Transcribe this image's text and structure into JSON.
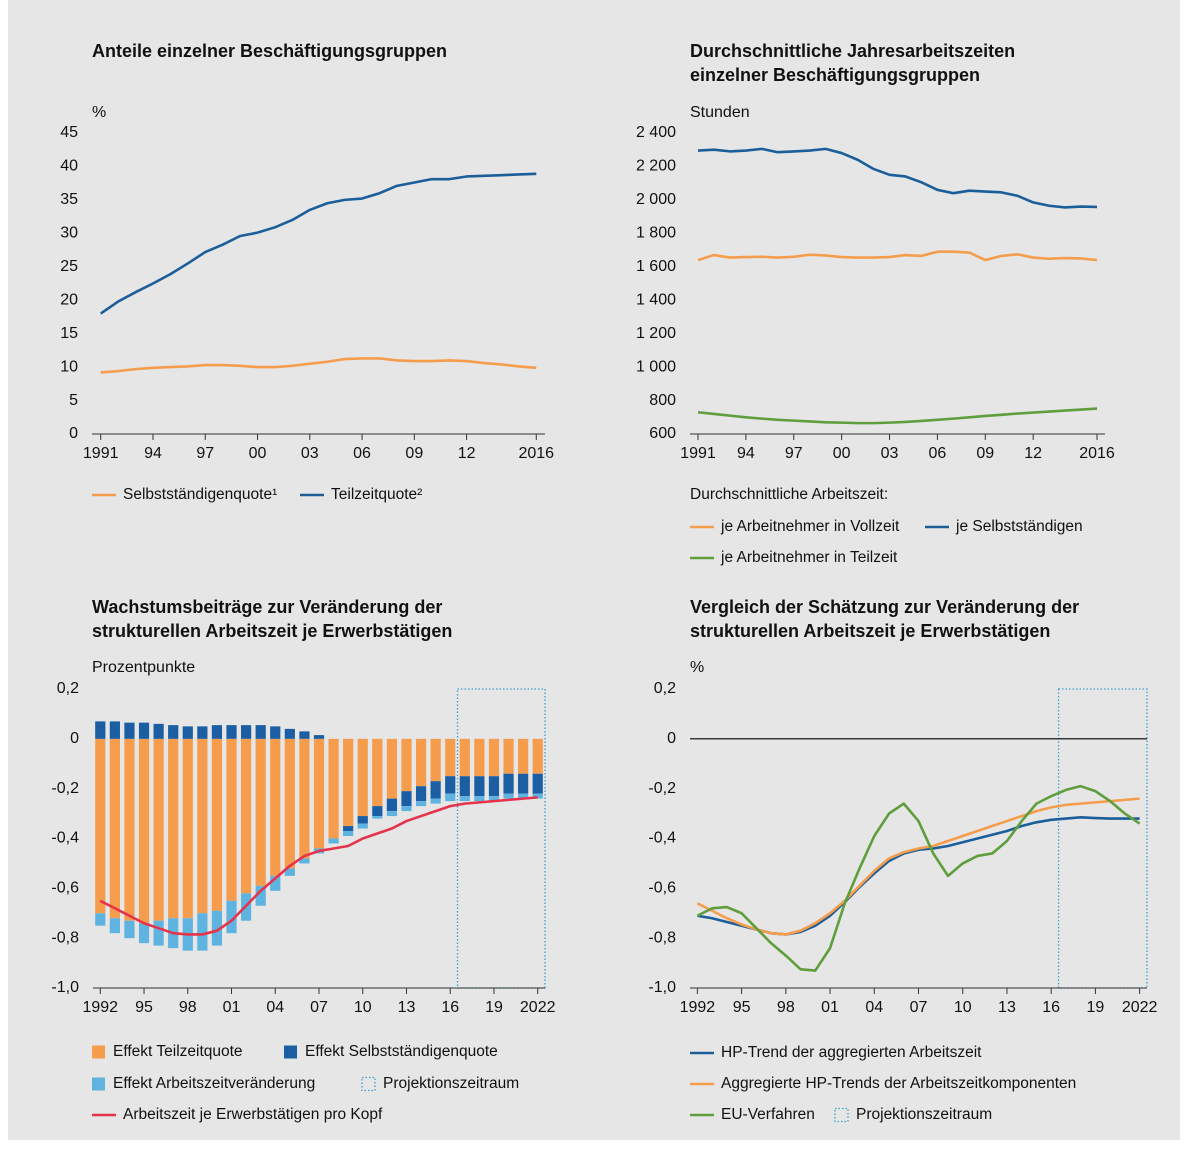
{
  "chart_data": [
    {
      "type": "line",
      "title": [
        "Anteile einzelner Beschäftigungsgruppen"
      ],
      "unit": "%",
      "x": [
        1991,
        1992,
        1993,
        1994,
        1995,
        1996,
        1997,
        1998,
        1999,
        2000,
        2001,
        2002,
        2003,
        2004,
        2005,
        2006,
        2007,
        2008,
        2009,
        2010,
        2011,
        2012,
        2013,
        2014,
        2015,
        2016
      ],
      "xlim": [
        1990.5,
        2016.5
      ],
      "xticks": [
        1991,
        {
          "value": 1994,
          "label": "94"
        },
        {
          "value": 1997,
          "label": "97"
        },
        {
          "value": 2000,
          "label": "00"
        },
        {
          "value": 2003,
          "label": "03"
        },
        {
          "value": 2006,
          "label": "06"
        },
        {
          "value": 2009,
          "label": "09"
        },
        {
          "value": 2012,
          "label": "12"
        },
        2016
      ],
      "ylim": [
        0,
        45
      ],
      "yticks": [
        0,
        5,
        10,
        15,
        20,
        25,
        30,
        35,
        40,
        45
      ],
      "series": [
        {
          "name": "Selbstständigenquote¹",
          "color": "#f59d4c",
          "values": [
            9.2,
            9.4,
            9.7,
            9.9,
            10,
            10.1,
            10.3,
            10.3,
            10.2,
            10,
            10,
            10.2,
            10.5,
            10.8,
            11.2,
            11.3,
            11.3,
            11,
            10.9,
            10.9,
            11,
            10.9,
            10.6,
            10.4,
            10.1,
            9.9
          ]
        },
        {
          "name": "Teilzeitquote²",
          "color": "#1b5e9a",
          "values": [
            18,
            19.8,
            21.2,
            22.5,
            23.9,
            25.5,
            27.2,
            28.3,
            29.6,
            30.1,
            30.9,
            32,
            33.5,
            34.5,
            35,
            35.2,
            36,
            37.1,
            37.6,
            38.1,
            38.1,
            38.5,
            38.6,
            38.7,
            38.8,
            38.9
          ]
        }
      ]
    },
    {
      "type": "line",
      "title": [
        "Durchschnittliche Jahresarbeitszeiten",
        "einzelner Beschäftigungsgruppen"
      ],
      "unit": "Stunden",
      "legend_title": "Durchschnittliche Arbeitszeit:",
      "x": [
        1991,
        1992,
        1993,
        1994,
        1995,
        1996,
        1997,
        1998,
        1999,
        2000,
        2001,
        2002,
        2003,
        2004,
        2005,
        2006,
        2007,
        2008,
        2009,
        2010,
        2011,
        2012,
        2013,
        2014,
        2015,
        2016
      ],
      "xlim": [
        1990.5,
        2016.5
      ],
      "xticks": [
        1991,
        {
          "value": 1994,
          "label": "94"
        },
        {
          "value": 1997,
          "label": "97"
        },
        {
          "value": 2000,
          "label": "00"
        },
        {
          "value": 2003,
          "label": "03"
        },
        {
          "value": 2006,
          "label": "06"
        },
        {
          "value": 2009,
          "label": "09"
        },
        {
          "value": 2012,
          "label": "12"
        },
        2016
      ],
      "ylim": [
        600,
        2400
      ],
      "yticks": [
        600,
        800,
        {
          "value": 1000,
          "label": "1 000"
        },
        {
          "value": 1200,
          "label": "1 200"
        },
        {
          "value": 1400,
          "label": "1 400"
        },
        {
          "value": 1600,
          "label": "1 600"
        },
        {
          "value": 1800,
          "label": "1 800"
        },
        {
          "value": 2000,
          "label": "2 000"
        },
        {
          "value": 2200,
          "label": "2 200"
        },
        {
          "value": 2400,
          "label": "2 400"
        }
      ],
      "series": [
        {
          "name": "je Arbeitnehmer in Vollzeit",
          "color": "#f59d4c",
          "values": [
            1640,
            1670,
            1655,
            1658,
            1660,
            1655,
            1660,
            1672,
            1668,
            1658,
            1655,
            1655,
            1658,
            1670,
            1665,
            1690,
            1690,
            1685,
            1640,
            1665,
            1675,
            1655,
            1648,
            1652,
            1650,
            1640
          ]
        },
        {
          "name": "je Selbstständigen",
          "color": "#1b5e9a",
          "values": [
            2295,
            2300,
            2290,
            2295,
            2305,
            2285,
            2290,
            2295,
            2305,
            2280,
            2240,
            2185,
            2150,
            2140,
            2105,
            2060,
            2040,
            2055,
            2050,
            2045,
            2025,
            1985,
            1965,
            1955,
            1960,
            1958
          ]
        },
        {
          "name": "je Arbeitnehmer in Teilzeit",
          "color": "#5f9e3c",
          "values": [
            730,
            720,
            710,
            700,
            692,
            685,
            680,
            675,
            670,
            668,
            665,
            665,
            668,
            672,
            678,
            685,
            692,
            700,
            708,
            715,
            722,
            728,
            734,
            740,
            746,
            752
          ]
        }
      ]
    },
    {
      "type": "bar",
      "title": [
        "Wachstumsbeiträge zur Veränderung der",
        "strukturellen Arbeitszeit je Erwerbstätigen"
      ],
      "unit": "Prozentpunkte",
      "x": [
        1992,
        1993,
        1994,
        1995,
        1996,
        1997,
        1998,
        1999,
        2000,
        2001,
        2002,
        2003,
        2004,
        2005,
        2006,
        2007,
        2008,
        2009,
        2010,
        2011,
        2012,
        2013,
        2014,
        2015,
        2016,
        2017,
        2018,
        2019,
        2020,
        2021,
        2022
      ],
      "xlim": [
        1991.5,
        2022.5
      ],
      "xticks": [
        1992,
        {
          "value": 1995,
          "label": "95"
        },
        {
          "value": 1998,
          "label": "98"
        },
        {
          "value": 2001,
          "label": "01"
        },
        {
          "value": 2004,
          "label": "04"
        },
        {
          "value": 2007,
          "label": "07"
        },
        {
          "value": 2010,
          "label": "10"
        },
        {
          "value": 2013,
          "label": "13"
        },
        {
          "value": 2016,
          "label": "16"
        },
        {
          "value": 2019,
          "label": "19"
        },
        2022
      ],
      "ylim": [
        -1.0,
        0.2
      ],
      "yticks": [
        {
          "value": 0.2,
          "label": "0,2"
        },
        0,
        {
          "value": -0.2,
          "label": "-0,2"
        },
        {
          "value": -0.4,
          "label": "-0,4"
        },
        {
          "value": -0.6,
          "label": "-0,6"
        },
        {
          "value": -0.8,
          "label": "-0,8"
        },
        {
          "value": -1.0,
          "label": "-1,0"
        }
      ],
      "projection_start": 2016.5,
      "projection_label": "Projektionszeitraum",
      "projection_color": "#3a9fd6",
      "series": [
        {
          "name": "Effekt Teilzeitquote",
          "color": "#f59d4c",
          "values": [
            -0.7,
            -0.72,
            -0.73,
            -0.74,
            -0.73,
            -0.72,
            -0.72,
            -0.7,
            -0.69,
            -0.65,
            -0.62,
            -0.59,
            -0.55,
            -0.52,
            -0.48,
            -0.44,
            -0.4,
            -0.35,
            -0.31,
            -0.27,
            -0.24,
            -0.21,
            -0.19,
            -0.17,
            -0.15,
            -0.15,
            -0.15,
            -0.15,
            -0.14,
            -0.14,
            -0.14
          ]
        },
        {
          "name": "Effekt Selbstständigenquote",
          "color": "#1c5ea3",
          "values": [
            0.07,
            0.07,
            0.065,
            0.065,
            0.06,
            0.055,
            0.05,
            0.05,
            0.055,
            0.055,
            0.055,
            0.055,
            0.05,
            0.04,
            0.03,
            0.015,
            0,
            -0.02,
            -0.03,
            -0.04,
            -0.05,
            -0.06,
            -0.06,
            -0.07,
            -0.07,
            -0.08,
            -0.08,
            -0.08,
            -0.08,
            -0.08,
            -0.08
          ]
        },
        {
          "name": "Effekt Arbeitszeitveränderung",
          "color": "#5fb3e0",
          "values": [
            -0.05,
            -0.06,
            -0.07,
            -0.08,
            -0.1,
            -0.12,
            -0.13,
            -0.15,
            -0.14,
            -0.13,
            -0.11,
            -0.08,
            -0.06,
            -0.03,
            -0.02,
            -0.02,
            -0.02,
            -0.02,
            -0.02,
            -0.01,
            -0.02,
            -0.02,
            -0.02,
            -0.02,
            -0.03,
            -0.02,
            -0.02,
            -0.02,
            -0.02,
            -0.02,
            -0.02
          ]
        },
        {
          "name": "Arbeitszeit je Erwerbstätigen pro Kopf",
          "type": "line",
          "color": "#e5334b",
          "values": [
            -0.65,
            -0.68,
            -0.71,
            -0.74,
            -0.76,
            -0.78,
            -0.785,
            -0.785,
            -0.77,
            -0.73,
            -0.67,
            -0.61,
            -0.56,
            -0.51,
            -0.47,
            -0.45,
            -0.44,
            -0.43,
            -0.4,
            -0.38,
            -0.36,
            -0.33,
            -0.31,
            -0.29,
            -0.27,
            -0.26,
            -0.255,
            -0.25,
            -0.245,
            -0.24,
            -0.235
          ]
        }
      ]
    },
    {
      "type": "line",
      "title": [
        "Vergleich der Schätzung zur Veränderung der",
        "strukturellen Arbeitszeit je Erwerbstätigen"
      ],
      "unit": "%",
      "x": [
        1992,
        1993,
        1994,
        1995,
        1996,
        1997,
        1998,
        1999,
        2000,
        2001,
        2002,
        2003,
        2004,
        2005,
        2006,
        2007,
        2008,
        2009,
        2010,
        2011,
        2012,
        2013,
        2014,
        2015,
        2016,
        2017,
        2018,
        2019,
        2020,
        2021,
        2022
      ],
      "xlim": [
        1991.5,
        2022.5
      ],
      "xticks": [
        1992,
        {
          "value": 1995,
          "label": "95"
        },
        {
          "value": 1998,
          "label": "98"
        },
        {
          "value": 2001,
          "label": "01"
        },
        {
          "value": 2004,
          "label": "04"
        },
        {
          "value": 2007,
          "label": "07"
        },
        {
          "value": 2010,
          "label": "10"
        },
        {
          "value": 2013,
          "label": "13"
        },
        {
          "value": 2016,
          "label": "16"
        },
        {
          "value": 2019,
          "label": "19"
        },
        2022
      ],
      "ylim": [
        -1.0,
        0.2
      ],
      "yticks": [
        {
          "value": 0.2,
          "label": "0,2"
        },
        0,
        {
          "value": -0.2,
          "label": "-0,2"
        },
        {
          "value": -0.4,
          "label": "-0,4"
        },
        {
          "value": -0.6,
          "label": "-0,6"
        },
        {
          "value": -0.8,
          "label": "-0,8"
        },
        {
          "value": -1.0,
          "label": "-1,0"
        }
      ],
      "zero_line": true,
      "projection_start": 2016.5,
      "projection_label": "Projektionszeitraum",
      "projection_color": "#3a9fd6",
      "series": [
        {
          "name": "HP-Trend der aggregierten Arbeitszeit",
          "color": "#1b5e9a",
          "values": [
            -0.71,
            -0.72,
            -0.735,
            -0.75,
            -0.765,
            -0.78,
            -0.785,
            -0.775,
            -0.75,
            -0.71,
            -0.655,
            -0.595,
            -0.54,
            -0.49,
            -0.46,
            -0.445,
            -0.44,
            -0.43,
            -0.415,
            -0.4,
            -0.385,
            -0.37,
            -0.35,
            -0.335,
            -0.325,
            -0.32,
            -0.315,
            -0.318,
            -0.32,
            -0.32,
            -0.32
          ]
        },
        {
          "name": "Aggregierte HP-Trends der Arbeitszeitkomponenten",
          "color": "#f59d4c",
          "values": [
            -0.66,
            -0.69,
            -0.72,
            -0.745,
            -0.765,
            -0.78,
            -0.785,
            -0.77,
            -0.74,
            -0.7,
            -0.65,
            -0.59,
            -0.53,
            -0.48,
            -0.455,
            -0.44,
            -0.43,
            -0.41,
            -0.39,
            -0.37,
            -0.35,
            -0.33,
            -0.31,
            -0.29,
            -0.275,
            -0.265,
            -0.26,
            -0.255,
            -0.25,
            -0.245,
            -0.24
          ]
        },
        {
          "name": "EU-Verfahren",
          "color": "#5f9e3c",
          "values": [
            -0.71,
            -0.68,
            -0.675,
            -0.7,
            -0.76,
            -0.82,
            -0.87,
            -0.925,
            -0.93,
            -0.84,
            -0.66,
            -0.52,
            -0.39,
            -0.3,
            -0.26,
            -0.33,
            -0.46,
            -0.55,
            -0.5,
            -0.47,
            -0.46,
            -0.41,
            -0.33,
            -0.26,
            -0.23,
            -0.205,
            -0.19,
            -0.21,
            -0.25,
            -0.3,
            -0.34
          ]
        }
      ]
    }
  ]
}
